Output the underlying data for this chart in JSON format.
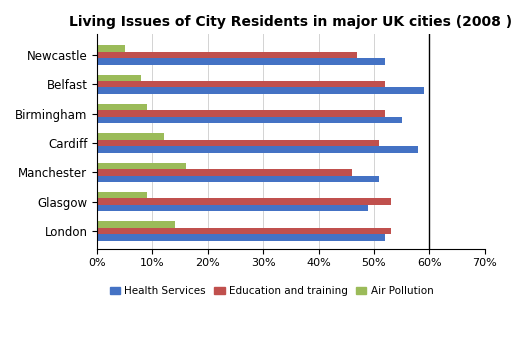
{
  "title": "Living Issues of City Residents in major UK cities (2008 )",
  "cities": [
    "London",
    "Glasgow",
    "Manchester",
    "Cardiff",
    "Birmingham",
    "Belfast",
    "Newcastle"
  ],
  "health_services": [
    52,
    49,
    51,
    58,
    55,
    59,
    52
  ],
  "education_training": [
    53,
    53,
    46,
    51,
    52,
    52,
    47
  ],
  "air_pollution": [
    14,
    9,
    16,
    12,
    9,
    8,
    5
  ],
  "colors": {
    "health": "#4472C4",
    "education": "#C0504D",
    "air": "#9BBB59"
  },
  "xlim": [
    0,
    70
  ],
  "xticks": [
    0,
    10,
    20,
    30,
    40,
    50,
    60,
    70
  ],
  "xtick_labels": [
    "0%",
    "10%",
    "20%",
    "30%",
    "40%",
    "50%",
    "60%",
    "70%"
  ],
  "legend_labels": [
    "Health Services",
    "Education and training",
    "Air Pollution"
  ],
  "bar_height": 0.22,
  "background_color": "#ffffff"
}
